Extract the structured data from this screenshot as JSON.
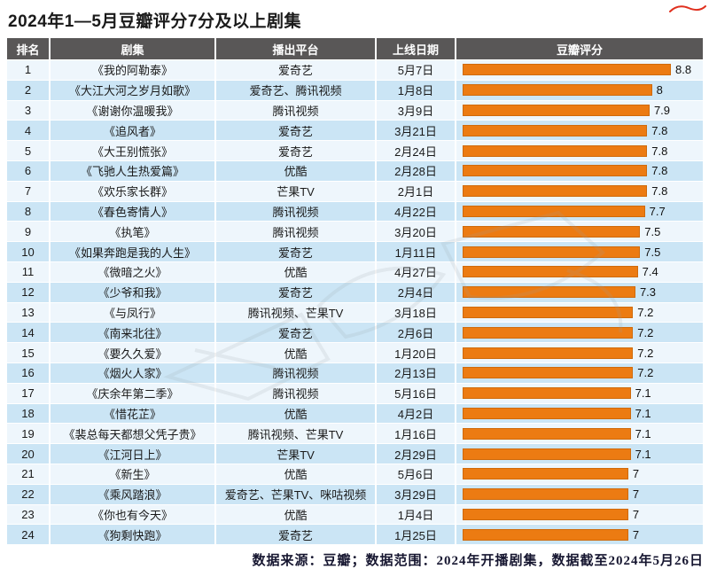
{
  "page": {
    "title": "2024年1—5月豆瓣评分7分及以上剧集",
    "footer": "数据来源：豆瓣；数据范围：2024年开播剧集，数据截至2024年5月26日"
  },
  "table": {
    "columns": [
      "排名",
      "剧集",
      "播出平台",
      "上线日期",
      "豆瓣评分"
    ],
    "rows": [
      {
        "rank": "1",
        "title": "《我的阿勒泰》",
        "platform": "爱奇艺",
        "date": "5月7日",
        "score": 8.8,
        "score_label": "8.8"
      },
      {
        "rank": "2",
        "title": "《大江大河之岁月如歌》",
        "platform": "爱奇艺、腾讯视频",
        "date": "1月8日",
        "score": 8,
        "score_label": "8"
      },
      {
        "rank": "3",
        "title": "《谢谢你温暖我》",
        "platform": "腾讯视频",
        "date": "3月9日",
        "score": 7.9,
        "score_label": "7.9"
      },
      {
        "rank": "4",
        "title": "《追风者》",
        "platform": "爱奇艺",
        "date": "3月21日",
        "score": 7.8,
        "score_label": "7.8"
      },
      {
        "rank": "5",
        "title": "《大王别慌张》",
        "platform": "爱奇艺",
        "date": "2月24日",
        "score": 7.8,
        "score_label": "7.8"
      },
      {
        "rank": "6",
        "title": "《飞驰人生热爱篇》",
        "platform": "优酷",
        "date": "2月28日",
        "score": 7.8,
        "score_label": "7.8"
      },
      {
        "rank": "7",
        "title": "《欢乐家长群》",
        "platform": "芒果TV",
        "date": "2月1日",
        "score": 7.8,
        "score_label": "7.8"
      },
      {
        "rank": "8",
        "title": "《春色寄情人》",
        "platform": "腾讯视频",
        "date": "4月22日",
        "score": 7.7,
        "score_label": "7.7"
      },
      {
        "rank": "9",
        "title": "《执笔》",
        "platform": "腾讯视频",
        "date": "3月20日",
        "score": 7.5,
        "score_label": "7.5"
      },
      {
        "rank": "10",
        "title": "《如果奔跑是我的人生》",
        "platform": "爱奇艺",
        "date": "1月11日",
        "score": 7.5,
        "score_label": "7.5"
      },
      {
        "rank": "11",
        "title": "《微暗之火》",
        "platform": "优酷",
        "date": "4月27日",
        "score": 7.4,
        "score_label": "7.4"
      },
      {
        "rank": "12",
        "title": "《少爷和我》",
        "platform": "爱奇艺",
        "date": "2月4日",
        "score": 7.3,
        "score_label": "7.3"
      },
      {
        "rank": "13",
        "title": "《与凤行》",
        "platform": "腾讯视频、芒果TV",
        "date": "3月18日",
        "score": 7.2,
        "score_label": "7.2"
      },
      {
        "rank": "14",
        "title": "《南来北往》",
        "platform": "爱奇艺",
        "date": "2月6日",
        "score": 7.2,
        "score_label": "7.2"
      },
      {
        "rank": "15",
        "title": "《要久久爱》",
        "platform": "优酷",
        "date": "1月20日",
        "score": 7.2,
        "score_label": "7.2"
      },
      {
        "rank": "16",
        "title": "《烟火人家》",
        "platform": "腾讯视频",
        "date": "2月13日",
        "score": 7.2,
        "score_label": "7.2"
      },
      {
        "rank": "17",
        "title": "《庆余年第二季》",
        "platform": "腾讯视频",
        "date": "5月16日",
        "score": 7.1,
        "score_label": "7.1"
      },
      {
        "rank": "18",
        "title": "《惜花芷》",
        "platform": "优酷",
        "date": "4月2日",
        "score": 7.1,
        "score_label": "7.1"
      },
      {
        "rank": "19",
        "title": "《裴总每天都想父凭子贵》",
        "platform": "腾讯视频、芒果TV",
        "date": "1月16日",
        "score": 7.1,
        "score_label": "7.1"
      },
      {
        "rank": "20",
        "title": "《江河日上》",
        "platform": "芒果TV",
        "date": "2月29日",
        "score": 7.1,
        "score_label": "7.1"
      },
      {
        "rank": "21",
        "title": "《新生》",
        "platform": "优酷",
        "date": "5月6日",
        "score": 7,
        "score_label": "7"
      },
      {
        "rank": "22",
        "title": "《乘风踏浪》",
        "platform": "爱奇艺、芒果TV、咪咕视频",
        "date": "3月29日",
        "score": 7,
        "score_label": "7"
      },
      {
        "rank": "23",
        "title": "《你也有今天》",
        "platform": "优酷",
        "date": "1月4日",
        "score": 7,
        "score_label": "7"
      },
      {
        "rank": "24",
        "title": "《狗剩快跑》",
        "platform": "爱奇艺",
        "date": "1月25日",
        "score": 7,
        "score_label": "7"
      }
    ]
  },
  "colors": {
    "header_bg": "#595757",
    "header_text": "#ffffff",
    "row_light": "#eef6fc",
    "row_alt": "#cbe5f5",
    "bar": "#ec7b12",
    "bar_border": "#cf6a0b",
    "accent_red": "#e0301e"
  },
  "chart_data": {
    "type": "bar",
    "orientation": "horizontal",
    "title": "2024年1—5月豆瓣评分7分及以上剧集",
    "xlabel": "豆瓣评分",
    "ylabel": "剧集",
    "value_range": [
      0,
      8.8
    ],
    "grid": false,
    "legend": "none",
    "bar_color": "#ec7b12",
    "categories": [
      "《我的阿勒泰》",
      "《大江大河之岁月如歌》",
      "《谢谢你温暖我》",
      "《追风者》",
      "《大王别慌张》",
      "《飞驰人生热爱篇》",
      "《欢乐家长群》",
      "《春色寄情人》",
      "《执笔》",
      "《如果奔跑是我的人生》",
      "《微暗之火》",
      "《少爷和我》",
      "《与凤行》",
      "《南来北往》",
      "《要久久爱》",
      "《烟火人家》",
      "《庆余年第二季》",
      "《惜花芷》",
      "《裴总每天都想父凭子贵》",
      "《江河日上》",
      "《新生》",
      "《乘风踏浪》",
      "《你也有今天》",
      "《狗剩快跑》"
    ],
    "values": [
      8.8,
      8,
      7.9,
      7.8,
      7.8,
      7.8,
      7.8,
      7.7,
      7.5,
      7.5,
      7.4,
      7.3,
      7.2,
      7.2,
      7.2,
      7.2,
      7.1,
      7.1,
      7.1,
      7.1,
      7,
      7,
      7,
      7
    ]
  }
}
